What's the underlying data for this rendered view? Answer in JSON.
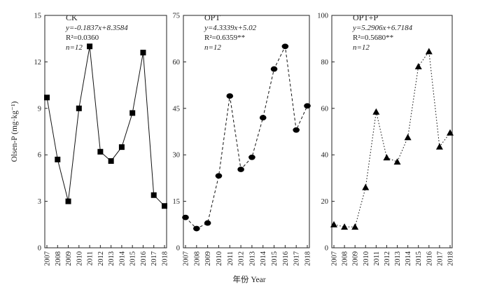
{
  "figure": {
    "xlabel": "年份 Year",
    "ylabel": "Olsen-P (mg·kg⁻¹)"
  },
  "chart_data": [
    {
      "type": "line",
      "panel": "CK",
      "x": [
        2007,
        2008,
        2009,
        2010,
        2011,
        2012,
        2013,
        2014,
        2015,
        2016,
        2017,
        2018
      ],
      "series": [
        {
          "values": [
            9.7,
            5.7,
            3.0,
            9.0,
            13.0,
            6.2,
            5.6,
            6.5,
            8.7,
            12.6,
            3.4,
            2.7
          ],
          "marker": "square",
          "line_style": "solid"
        }
      ],
      "ylim": [
        0,
        15
      ],
      "yticks": [
        0,
        3,
        6,
        9,
        12,
        15
      ],
      "annotation": {
        "title": "CK",
        "equation": "y=-0.1837x+8.3584",
        "r2": "R²=0.0360",
        "n": "n=12"
      }
    },
    {
      "type": "line",
      "panel": "OPT",
      "x": [
        2007,
        2008,
        2009,
        2010,
        2011,
        2012,
        2013,
        2014,
        2015,
        2016,
        2017,
        2018
      ],
      "series": [
        {
          "values": [
            9.8,
            6.2,
            8.0,
            23.2,
            49.0,
            25.3,
            29.2,
            42.0,
            57.7,
            65.0,
            38.0,
            45.8
          ],
          "marker": "circle",
          "line_style": "dashed"
        }
      ],
      "ylim": [
        0,
        75
      ],
      "yticks": [
        0,
        15,
        30,
        45,
        60,
        75
      ],
      "annotation": {
        "title": "OPT",
        "equation": "y=4.3339x+5.02",
        "r2": "R²=0.6359**",
        "n": "n=12"
      }
    },
    {
      "type": "line",
      "panel": "OPT+P",
      "x": [
        2007,
        2008,
        2009,
        2010,
        2011,
        2012,
        2013,
        2014,
        2015,
        2016,
        2017,
        2018
      ],
      "series": [
        {
          "values": [
            10.0,
            9.0,
            9.0,
            26.0,
            58.5,
            38.8,
            37.0,
            47.5,
            78.0,
            84.5,
            43.5,
            49.5
          ],
          "marker": "triangle",
          "line_style": "dotted"
        }
      ],
      "ylim": [
        0,
        100
      ],
      "yticks": [
        0,
        20,
        40,
        60,
        80,
        100
      ],
      "annotation": {
        "title": "OPT+P",
        "equation": "y=5.2906x+6.7184",
        "r2": "R²=0.5680**",
        "n": "n=12"
      }
    }
  ]
}
